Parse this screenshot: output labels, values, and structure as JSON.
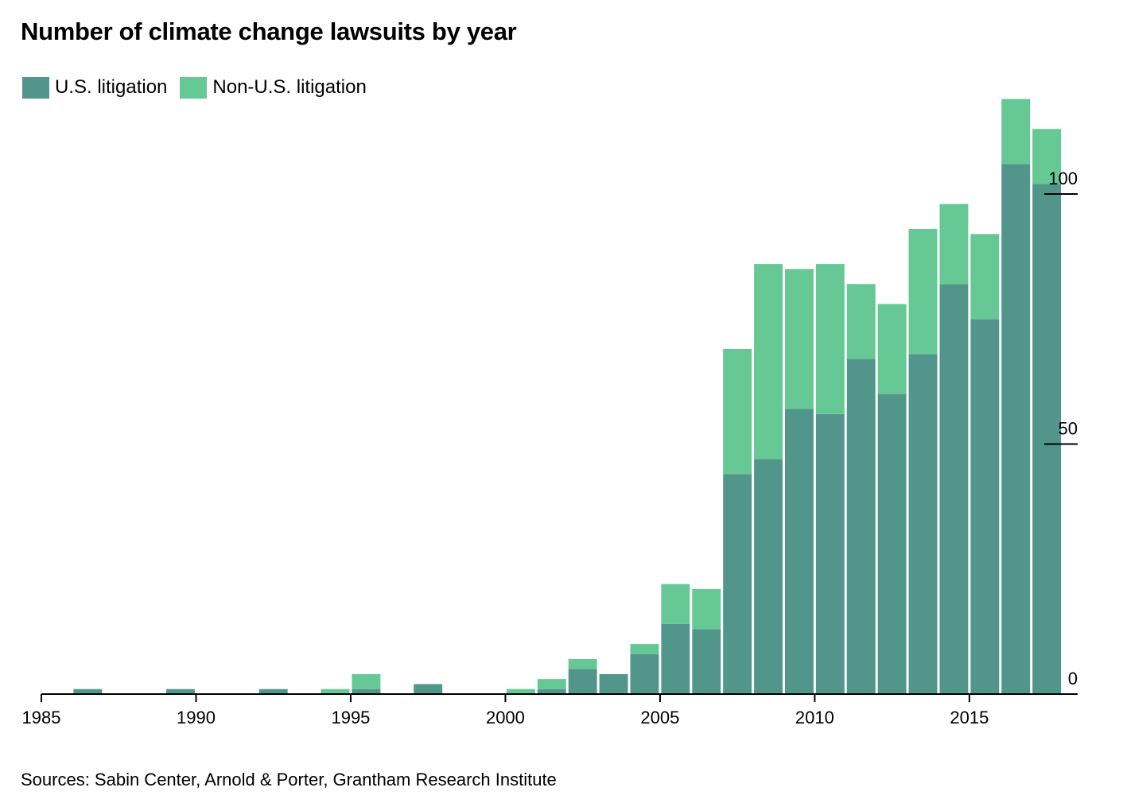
{
  "title": "Number of climate change lawsuits by year",
  "source": "Sources: Sabin Center, Arnold & Porter, Grantham Research Institute",
  "legend": [
    {
      "label": "U.S. litigation",
      "color": "#52968b"
    },
    {
      "label": "Non-U.S. litigation",
      "color": "#66c894"
    }
  ],
  "chart_data": {
    "type": "bar",
    "stacked": true,
    "categories": [
      "1985",
      "1986",
      "1987",
      "1988",
      "1989",
      "1990",
      "1991",
      "1992",
      "1993",
      "1994",
      "1995",
      "1996",
      "1997",
      "1998",
      "1999",
      "2000",
      "2001",
      "2002",
      "2003",
      "2004",
      "2005",
      "2006",
      "2007",
      "2008",
      "2009",
      "2010",
      "2011",
      "2012",
      "2013",
      "2014",
      "2015",
      "2016",
      "2017"
    ],
    "series": [
      {
        "name": "U.S. litigation",
        "color": "#52968b",
        "values": [
          0,
          1,
          0,
          0,
          1,
          0,
          0,
          1,
          0,
          0,
          1,
          0,
          2,
          0,
          0,
          0,
          1,
          5,
          4,
          8,
          14,
          13,
          44,
          47,
          57,
          56,
          67,
          60,
          68,
          82,
          75,
          106,
          102
        ]
      },
      {
        "name": "Non-U.S. litigation",
        "color": "#66c894",
        "values": [
          0,
          0,
          0,
          0,
          0,
          0,
          0,
          0,
          0,
          1,
          3,
          0,
          0,
          0,
          0,
          1,
          2,
          2,
          0,
          2,
          8,
          8,
          25,
          39,
          28,
          30,
          15,
          18,
          25,
          16,
          17,
          13,
          11
        ]
      }
    ],
    "xlim": [
      1985,
      2018.5
    ],
    "ylim": [
      0,
      124
    ],
    "x_ticks": [
      "1985",
      "1990",
      "1995",
      "2000",
      "2005",
      "2010",
      "2015"
    ],
    "y_ticks": [
      "0",
      "50",
      "100"
    ],
    "y_axis_side": "right",
    "grid": false,
    "legend_position": "top-left"
  }
}
